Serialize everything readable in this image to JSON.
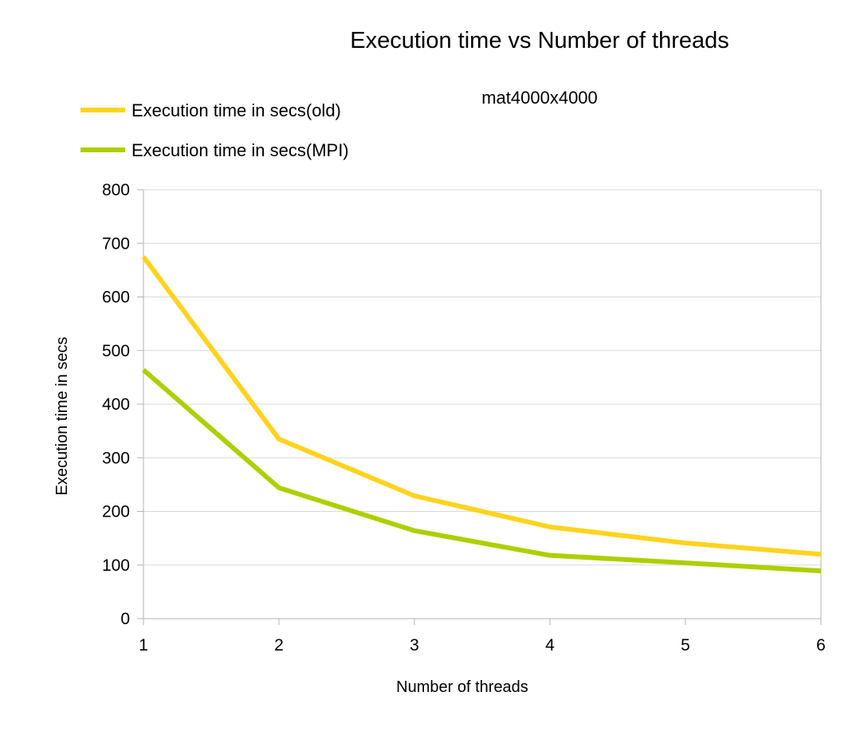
{
  "chart_data": {
    "type": "line",
    "title": "Execution time vs Number of threads",
    "subtitle": "mat4000x4000",
    "xlabel": "Number of threads",
    "ylabel": "Execution time in secs",
    "x": [
      1,
      2,
      3,
      4,
      5,
      6
    ],
    "x_tick_labels": [
      "1",
      "2",
      "3",
      "4",
      "5",
      "6"
    ],
    "y_tick_labels": [
      "0",
      "100",
      "200",
      "300",
      "400",
      "500",
      "600",
      "700",
      "800"
    ],
    "xlim": [
      1,
      6
    ],
    "ylim": [
      0,
      800
    ],
    "y_tick_step": 100,
    "grid": true,
    "legend_position": "top-left",
    "series": [
      {
        "name": "Execution time in secs(old)",
        "color": "#ffd320",
        "values": [
          675,
          335,
          229,
          171,
          141,
          120
        ]
      },
      {
        "name": "Execution time in secs(MPI)",
        "color": "#aecf00",
        "values": [
          464,
          244,
          164,
          118,
          104,
          89
        ]
      }
    ]
  }
}
